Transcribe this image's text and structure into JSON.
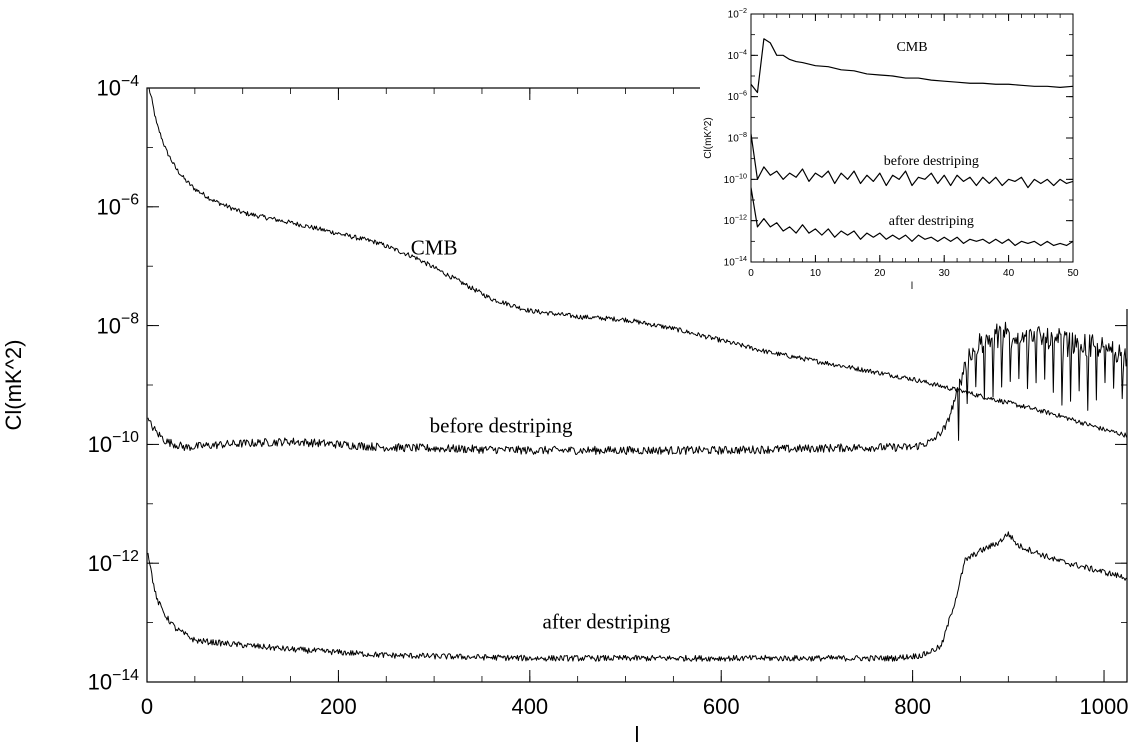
{
  "chart_data": [
    {
      "type": "line",
      "xlabel": "l",
      "ylabel": "Cl(mK^2)",
      "xlim": [
        0,
        1024
      ],
      "ylim_log10": [
        -14,
        -4
      ],
      "yscale": "log",
      "grid": false,
      "x_ticks": [
        {
          "value": 0,
          "label": "0"
        },
        {
          "value": 200,
          "label": "200"
        },
        {
          "value": 400,
          "label": "400"
        },
        {
          "value": 600,
          "label": "600"
        },
        {
          "value": 800,
          "label": "800"
        },
        {
          "value": 1000,
          "label": "1000"
        }
      ],
      "y_ticks": [
        {
          "exp": -4,
          "base": "10",
          "sup": "−4"
        },
        {
          "exp": -6,
          "base": "10",
          "sup": "−6"
        },
        {
          "exp": -8,
          "base": "10",
          "sup": "−8"
        },
        {
          "exp": -10,
          "base": "10",
          "sup": "−10"
        },
        {
          "exp": -12,
          "base": "10",
          "sup": "−12"
        },
        {
          "exp": -14,
          "base": "10",
          "sup": "−14"
        }
      ],
      "annotations": [
        {
          "text": "CMB",
          "l": 300,
          "log10": -6.8
        },
        {
          "text": "before destriping",
          "l": 370,
          "log10": -9.8
        },
        {
          "text": "after destriping",
          "l": 480,
          "log10": -13.1
        }
      ],
      "series": [
        {
          "key": "cmb",
          "log10_points": [
            [
              2,
              -4.0
            ],
            [
              5,
              -4.2
            ],
            [
              10,
              -4.6
            ],
            [
              20,
              -5.05
            ],
            [
              30,
              -5.35
            ],
            [
              40,
              -5.55
            ],
            [
              50,
              -5.7
            ],
            [
              70,
              -5.9
            ],
            [
              100,
              -6.1
            ],
            [
              130,
              -6.2
            ],
            [
              160,
              -6.3
            ],
            [
              200,
              -6.45
            ],
            [
              240,
              -6.6
            ],
            [
              280,
              -6.85
            ],
            [
              320,
              -7.2
            ],
            [
              360,
              -7.55
            ],
            [
              400,
              -7.75
            ],
            [
              450,
              -7.85
            ],
            [
              500,
              -7.9
            ],
            [
              550,
              -8.05
            ],
            [
              600,
              -8.25
            ],
            [
              650,
              -8.45
            ],
            [
              700,
              -8.6
            ],
            [
              750,
              -8.75
            ],
            [
              800,
              -8.9
            ],
            [
              850,
              -9.1
            ],
            [
              900,
              -9.3
            ],
            [
              950,
              -9.5
            ],
            [
              1000,
              -9.75
            ],
            [
              1024,
              -9.85
            ]
          ],
          "noise": 0.04
        },
        {
          "key": "before",
          "log10_points": [
            [
              1,
              -9.6
            ],
            [
              10,
              -9.8
            ],
            [
              20,
              -9.95
            ],
            [
              40,
              -10.05
            ],
            [
              80,
              -10.0
            ],
            [
              150,
              -9.95
            ],
            [
              250,
              -10.05
            ],
            [
              400,
              -10.1
            ],
            [
              600,
              -10.1
            ],
            [
              750,
              -10.05
            ],
            [
              800,
              -10.05
            ],
            [
              820,
              -9.95
            ],
            [
              835,
              -9.7
            ],
            [
              845,
              -9.2
            ],
            [
              855,
              -8.6
            ],
            [
              870,
              -8.3
            ],
            [
              900,
              -8.1
            ],
            [
              950,
              -8.25
            ],
            [
              1000,
              -8.4
            ],
            [
              1024,
              -8.45
            ]
          ],
          "noise": 0.07,
          "spikes_from": 848,
          "spikes_spacing": 9,
          "spikes_depth": 0.8
        },
        {
          "key": "after",
          "log10_points": [
            [
              1,
              -11.8
            ],
            [
              5,
              -12.2
            ],
            [
              10,
              -12.6
            ],
            [
              20,
              -12.9
            ],
            [
              30,
              -13.1
            ],
            [
              50,
              -13.3
            ],
            [
              80,
              -13.35
            ],
            [
              150,
              -13.45
            ],
            [
              250,
              -13.55
            ],
            [
              400,
              -13.6
            ],
            [
              600,
              -13.6
            ],
            [
              780,
              -13.6
            ],
            [
              810,
              -13.55
            ],
            [
              830,
              -13.4
            ],
            [
              845,
              -12.6
            ],
            [
              855,
              -11.95
            ],
            [
              870,
              -11.8
            ],
            [
              890,
              -11.65
            ],
            [
              900,
              -11.5
            ],
            [
              910,
              -11.7
            ],
            [
              950,
              -11.95
            ],
            [
              1000,
              -12.15
            ],
            [
              1024,
              -12.25
            ]
          ],
          "noise": 0.05
        }
      ]
    },
    {
      "type": "line",
      "xlabel": "l",
      "ylabel": "Cl(mK^2)",
      "xlim": [
        0,
        50
      ],
      "ylim_log10": [
        -14,
        -2
      ],
      "yscale": "log",
      "grid": false,
      "x_ticks": [
        {
          "value": 0,
          "label": "0"
        },
        {
          "value": 10,
          "label": "10"
        },
        {
          "value": 20,
          "label": "20"
        },
        {
          "value": 30,
          "label": "30"
        },
        {
          "value": 40,
          "label": "40"
        },
        {
          "value": 50,
          "label": "50"
        }
      ],
      "y_ticks": [
        {
          "exp": -2,
          "base": "10",
          "sup": "−2"
        },
        {
          "exp": -4,
          "base": "10",
          "sup": "−4"
        },
        {
          "exp": -6,
          "base": "10",
          "sup": "−6"
        },
        {
          "exp": -8,
          "base": "10",
          "sup": "−8"
        },
        {
          "exp": -10,
          "base": "10",
          "sup": "−10"
        },
        {
          "exp": -12,
          "base": "10",
          "sup": "−12"
        },
        {
          "exp": -14,
          "base": "10",
          "sup": "−14"
        }
      ],
      "annotations": [
        {
          "text": "CMB",
          "l": 25,
          "log10": -3.8
        },
        {
          "text": "before destriping",
          "l": 28,
          "log10": -9.3
        },
        {
          "text": "after destriping",
          "l": 28,
          "log10": -12.2
        }
      ],
      "series": [
        {
          "key": "cmb",
          "log10_points": [
            [
              0,
              -5.4
            ],
            [
              1,
              -5.8
            ],
            [
              2,
              -3.2
            ],
            [
              3,
              -3.4
            ],
            [
              4,
              -4.0
            ],
            [
              5,
              -4.0
            ],
            [
              6,
              -4.2
            ],
            [
              7,
              -4.3
            ],
            [
              8,
              -4.35
            ],
            [
              10,
              -4.5
            ],
            [
              12,
              -4.55
            ],
            [
              14,
              -4.7
            ],
            [
              16,
              -4.75
            ],
            [
              18,
              -4.9
            ],
            [
              20,
              -4.95
            ],
            [
              22,
              -5.0
            ],
            [
              24,
              -5.1
            ],
            [
              26,
              -5.1
            ],
            [
              28,
              -5.2
            ],
            [
              30,
              -5.25
            ],
            [
              32,
              -5.3
            ],
            [
              34,
              -5.35
            ],
            [
              36,
              -5.35
            ],
            [
              38,
              -5.4
            ],
            [
              40,
              -5.4
            ],
            [
              42,
              -5.45
            ],
            [
              44,
              -5.5
            ],
            [
              46,
              -5.5
            ],
            [
              48,
              -5.55
            ],
            [
              50,
              -5.5
            ]
          ]
        },
        {
          "key": "before",
          "log10_points": [
            [
              0,
              -7.8
            ],
            [
              1,
              -10.0
            ],
            [
              2,
              -9.4
            ],
            [
              3,
              -9.8
            ],
            [
              4,
              -9.6
            ],
            [
              5,
              -10.0
            ],
            [
              6,
              -9.7
            ],
            [
              7,
              -9.9
            ],
            [
              8,
              -9.5
            ],
            [
              9,
              -10.1
            ],
            [
              10,
              -9.7
            ],
            [
              11,
              -9.9
            ],
            [
              12,
              -9.6
            ],
            [
              13,
              -10.2
            ],
            [
              14,
              -9.7
            ],
            [
              15,
              -10.0
            ],
            [
              16,
              -9.6
            ],
            [
              17,
              -10.2
            ],
            [
              18,
              -9.8
            ],
            [
              19,
              -10.1
            ],
            [
              20,
              -9.7
            ],
            [
              21,
              -10.3
            ],
            [
              22,
              -9.8
            ],
            [
              23,
              -10.0
            ],
            [
              24,
              -9.6
            ],
            [
              25,
              -10.3
            ],
            [
              26,
              -9.9
            ],
            [
              27,
              -10.0
            ],
            [
              28,
              -9.7
            ],
            [
              29,
              -10.2
            ],
            [
              30,
              -9.8
            ],
            [
              31,
              -10.3
            ],
            [
              32,
              -9.8
            ],
            [
              33,
              -10.1
            ],
            [
              34,
              -9.9
            ],
            [
              35,
              -10.3
            ],
            [
              36,
              -9.9
            ],
            [
              37,
              -10.2
            ],
            [
              38,
              -9.9
            ],
            [
              39,
              -10.3
            ],
            [
              40,
              -10.0
            ],
            [
              41,
              -10.1
            ],
            [
              42,
              -9.9
            ],
            [
              43,
              -10.4
            ],
            [
              44,
              -10.0
            ],
            [
              45,
              -10.2
            ],
            [
              46,
              -10.0
            ],
            [
              47,
              -10.3
            ],
            [
              48,
              -10.0
            ],
            [
              49,
              -10.2
            ],
            [
              50,
              -10.1
            ]
          ]
        },
        {
          "key": "after",
          "log10_points": [
            [
              0,
              -10.4
            ],
            [
              1,
              -12.3
            ],
            [
              2,
              -11.9
            ],
            [
              3,
              -12.3
            ],
            [
              4,
              -12.1
            ],
            [
              5,
              -12.5
            ],
            [
              6,
              -12.3
            ],
            [
              7,
              -12.6
            ],
            [
              8,
              -12.2
            ],
            [
              9,
              -12.6
            ],
            [
              10,
              -12.4
            ],
            [
              11,
              -12.7
            ],
            [
              12,
              -12.4
            ],
            [
              13,
              -12.8
            ],
            [
              14,
              -12.5
            ],
            [
              15,
              -12.7
            ],
            [
              16,
              -12.5
            ],
            [
              17,
              -12.9
            ],
            [
              18,
              -12.6
            ],
            [
              19,
              -12.8
            ],
            [
              20,
              -12.6
            ],
            [
              21,
              -12.9
            ],
            [
              22,
              -12.7
            ],
            [
              23,
              -12.9
            ],
            [
              24,
              -12.7
            ],
            [
              25,
              -13.0
            ],
            [
              26,
              -12.7
            ],
            [
              27,
              -12.9
            ],
            [
              28,
              -12.8
            ],
            [
              29,
              -13.0
            ],
            [
              30,
              -12.8
            ],
            [
              31,
              -13.0
            ],
            [
              32,
              -12.8
            ],
            [
              33,
              -13.1
            ],
            [
              34,
              -12.9
            ],
            [
              35,
              -13.0
            ],
            [
              36,
              -12.9
            ],
            [
              37,
              -13.1
            ],
            [
              38,
              -12.9
            ],
            [
              39,
              -13.1
            ],
            [
              40,
              -12.9
            ],
            [
              41,
              -13.2
            ],
            [
              42,
              -13.0
            ],
            [
              43,
              -13.1
            ],
            [
              44,
              -13.0
            ],
            [
              45,
              -13.2
            ],
            [
              46,
              -13.0
            ],
            [
              47,
              -13.2
            ],
            [
              48,
              -13.1
            ],
            [
              49,
              -13.2
            ],
            [
              50,
              -13.0
            ]
          ]
        }
      ]
    }
  ]
}
